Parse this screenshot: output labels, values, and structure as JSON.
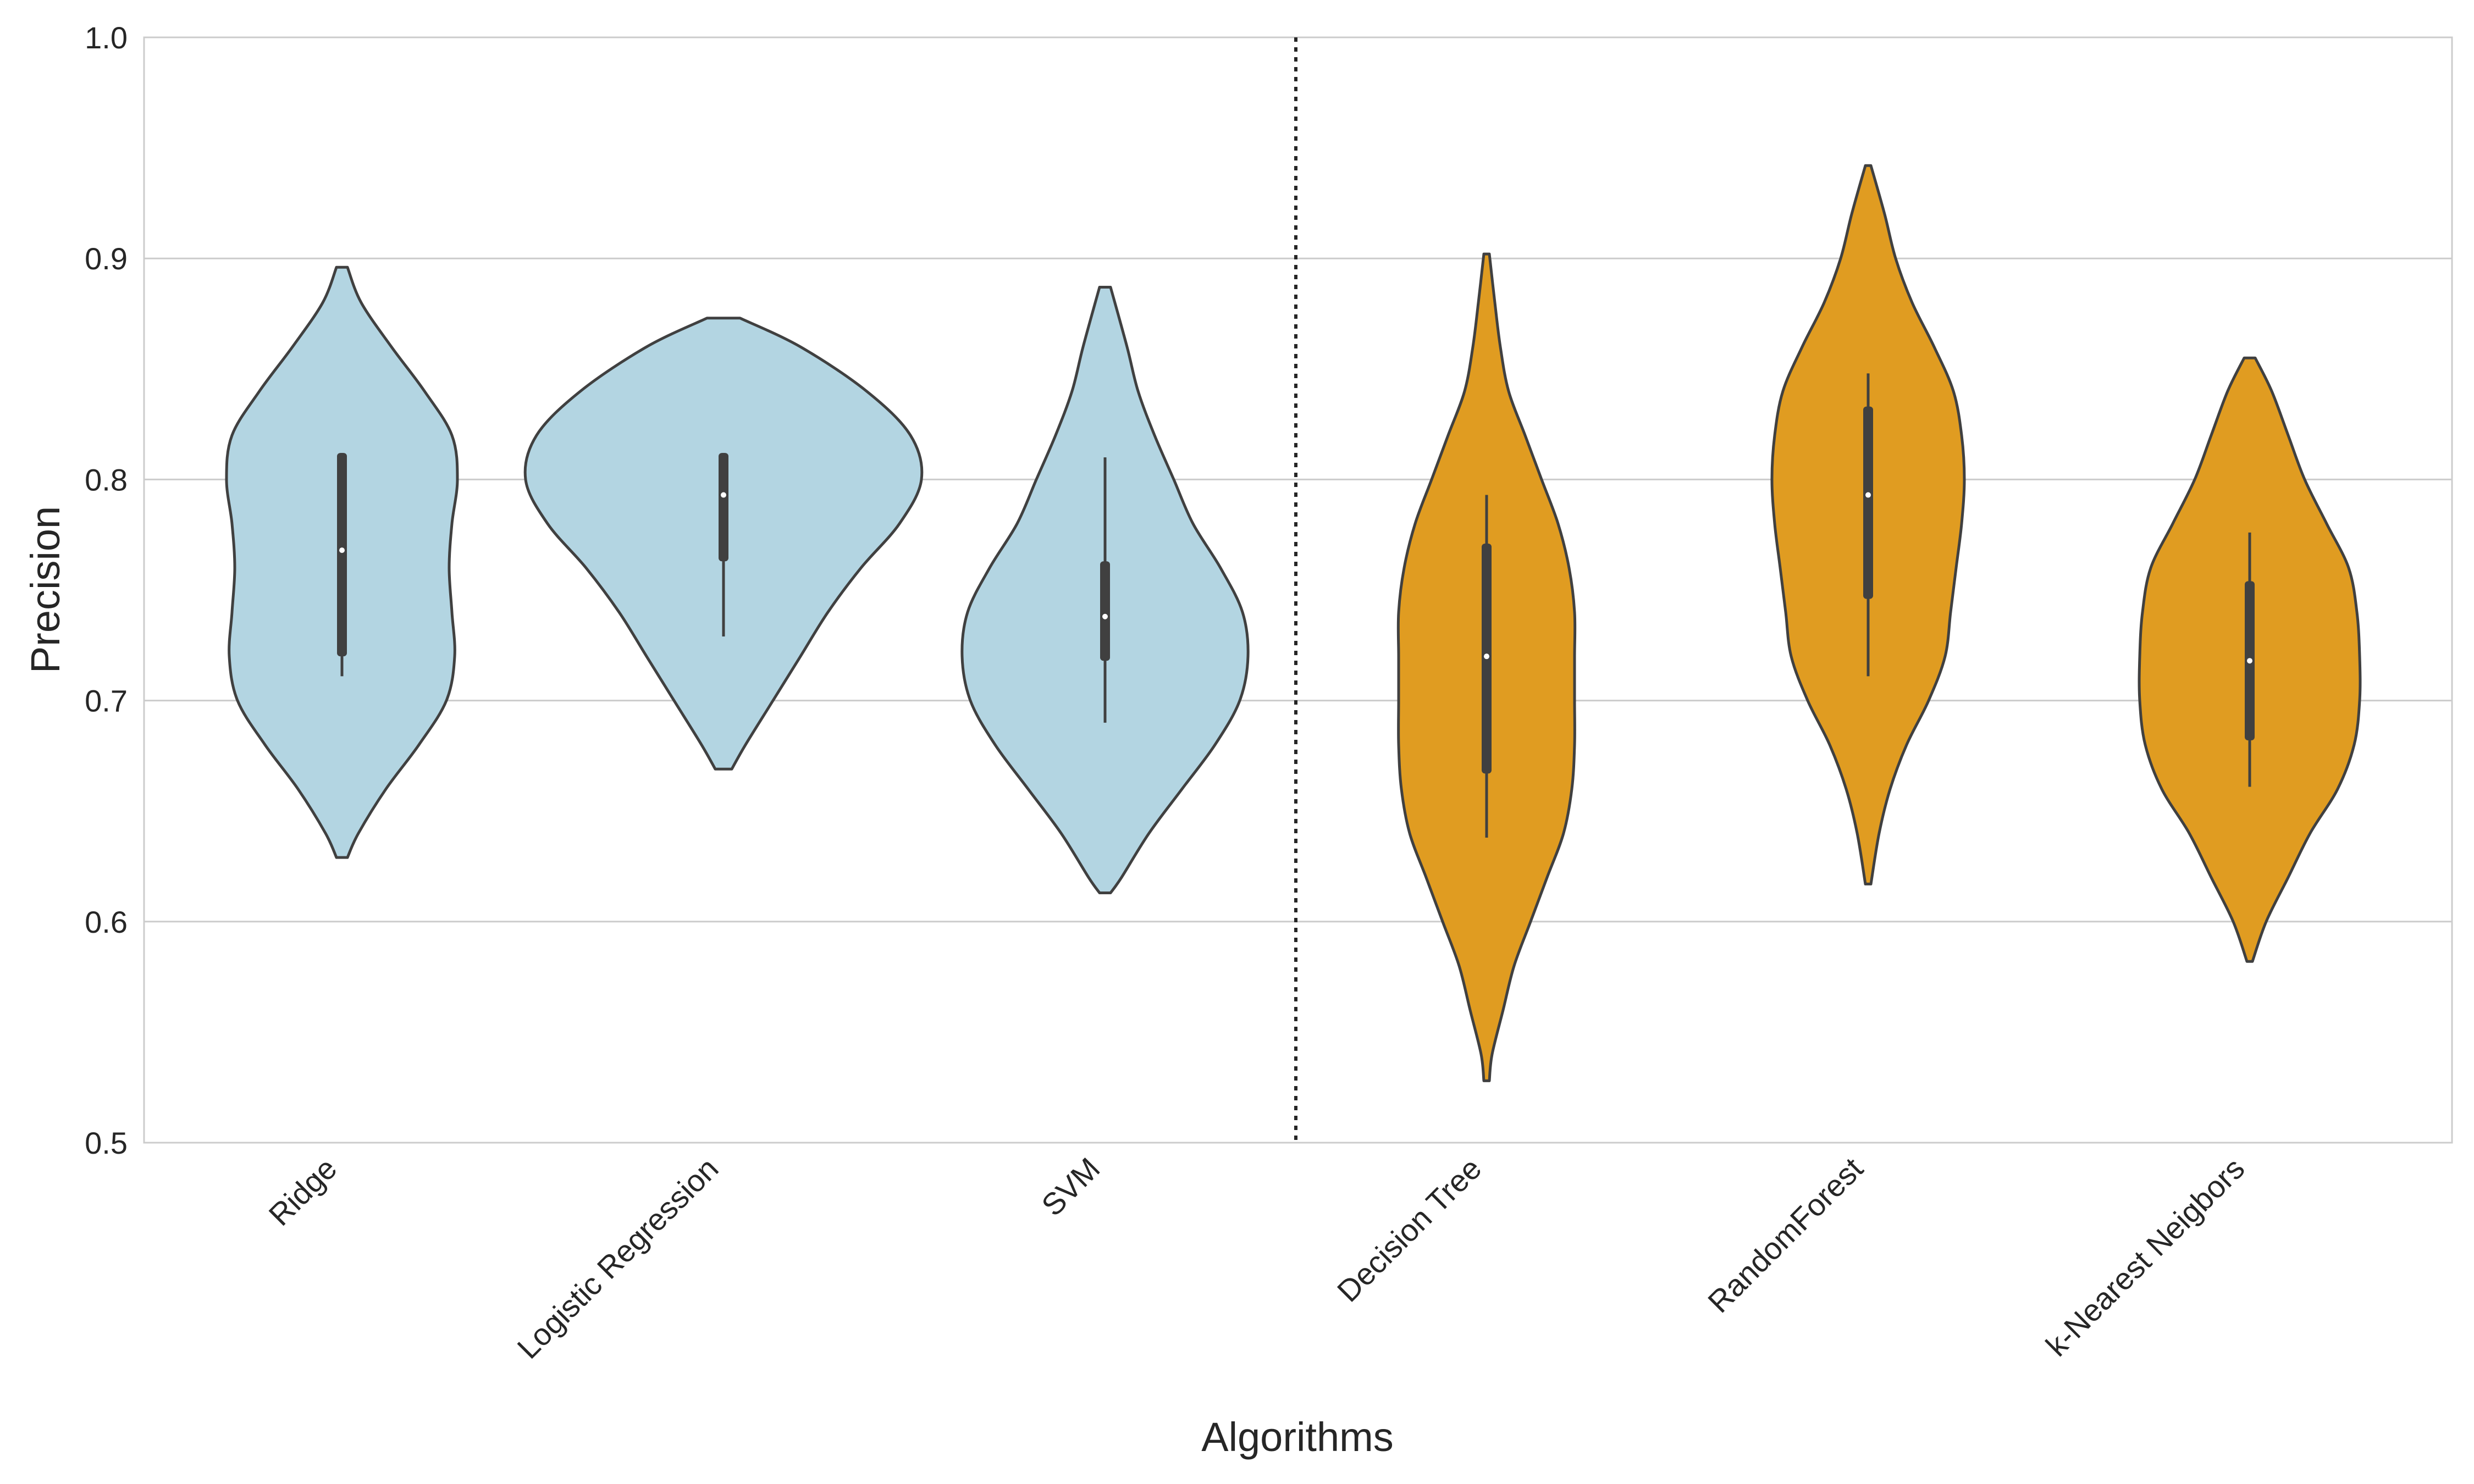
{
  "chart_data": {
    "type": "violin",
    "xlabel": "Algorithms",
    "ylabel": "Precision",
    "ylim": [
      0.5,
      1.0
    ],
    "yticks": [
      "0.5",
      "0.6",
      "0.7",
      "0.8",
      "0.9",
      "1.0"
    ],
    "grid": "horizontal",
    "divider_after_category": "SVM",
    "categories": [
      "Ridge",
      "Logistic Regression",
      "SVM",
      "Decision Tree",
      "RandomForest",
      "k-Nearest Neigbors"
    ],
    "colors": {
      "linear": "#b3d5e2",
      "nonlinear": "#e09c21",
      "outline": "#404040",
      "box": "#404040",
      "median": "#ffffff"
    },
    "violins": [
      {
        "group": "linear",
        "median": 0.768,
        "q1": 0.72,
        "q3": 0.812,
        "whisker_low": 0.711,
        "whisker_high": 0.812,
        "profile": [
          [
            0.629,
            0.01
          ],
          [
            0.64,
            0.03
          ],
          [
            0.66,
            0.08
          ],
          [
            0.68,
            0.14
          ],
          [
            0.7,
            0.19
          ],
          [
            0.72,
            0.205
          ],
          [
            0.74,
            0.2
          ],
          [
            0.76,
            0.195
          ],
          [
            0.78,
            0.2
          ],
          [
            0.8,
            0.21
          ],
          [
            0.82,
            0.2
          ],
          [
            0.84,
            0.15
          ],
          [
            0.86,
            0.09
          ],
          [
            0.88,
            0.035
          ],
          [
            0.896,
            0.01
          ]
        ]
      },
      {
        "group": "linear",
        "median": 0.793,
        "q1": 0.763,
        "q3": 0.812,
        "whisker_low": 0.729,
        "whisker_high": 0.812,
        "profile": [
          [
            0.669,
            0.015
          ],
          [
            0.68,
            0.04
          ],
          [
            0.7,
            0.09
          ],
          [
            0.72,
            0.14
          ],
          [
            0.74,
            0.19
          ],
          [
            0.76,
            0.25
          ],
          [
            0.78,
            0.32
          ],
          [
            0.8,
            0.36
          ],
          [
            0.82,
            0.34
          ],
          [
            0.84,
            0.26
          ],
          [
            0.86,
            0.14
          ],
          [
            0.873,
            0.03
          ]
        ]
      },
      {
        "group": "linear",
        "median": 0.738,
        "q1": 0.718,
        "q3": 0.763,
        "whisker_low": 0.69,
        "whisker_high": 0.81,
        "profile": [
          [
            0.613,
            0.01
          ],
          [
            0.62,
            0.03
          ],
          [
            0.64,
            0.08
          ],
          [
            0.66,
            0.14
          ],
          [
            0.68,
            0.2
          ],
          [
            0.7,
            0.245
          ],
          [
            0.72,
            0.26
          ],
          [
            0.74,
            0.25
          ],
          [
            0.76,
            0.21
          ],
          [
            0.78,
            0.16
          ],
          [
            0.8,
            0.125
          ],
          [
            0.82,
            0.09
          ],
          [
            0.84,
            0.06
          ],
          [
            0.86,
            0.04
          ],
          [
            0.887,
            0.01
          ]
        ]
      },
      {
        "group": "nonlinear",
        "median": 0.72,
        "q1": 0.667,
        "q3": 0.771,
        "whisker_low": 0.638,
        "whisker_high": 0.793,
        "profile": [
          [
            0.528,
            0.005
          ],
          [
            0.54,
            0.01
          ],
          [
            0.56,
            0.03
          ],
          [
            0.58,
            0.05
          ],
          [
            0.6,
            0.08
          ],
          [
            0.62,
            0.11
          ],
          [
            0.64,
            0.14
          ],
          [
            0.66,
            0.155
          ],
          [
            0.68,
            0.16
          ],
          [
            0.7,
            0.16
          ],
          [
            0.72,
            0.16
          ],
          [
            0.74,
            0.16
          ],
          [
            0.76,
            0.15
          ],
          [
            0.78,
            0.13
          ],
          [
            0.8,
            0.1
          ],
          [
            0.82,
            0.07
          ],
          [
            0.84,
            0.04
          ],
          [
            0.86,
            0.025
          ],
          [
            0.88,
            0.015
          ],
          [
            0.902,
            0.005
          ]
        ]
      },
      {
        "group": "nonlinear",
        "median": 0.793,
        "q1": 0.746,
        "q3": 0.833,
        "whisker_low": 0.711,
        "whisker_high": 0.848,
        "profile": [
          [
            0.617,
            0.005
          ],
          [
            0.64,
            0.02
          ],
          [
            0.66,
            0.04
          ],
          [
            0.68,
            0.07
          ],
          [
            0.7,
            0.11
          ],
          [
            0.72,
            0.14
          ],
          [
            0.74,
            0.15
          ],
          [
            0.76,
            0.16
          ],
          [
            0.78,
            0.17
          ],
          [
            0.8,
            0.175
          ],
          [
            0.82,
            0.17
          ],
          [
            0.84,
            0.155
          ],
          [
            0.86,
            0.12
          ],
          [
            0.88,
            0.08
          ],
          [
            0.9,
            0.05
          ],
          [
            0.92,
            0.03
          ],
          [
            0.942,
            0.005
          ]
        ]
      },
      {
        "group": "nonlinear",
        "median": 0.718,
        "q1": 0.682,
        "q3": 0.754,
        "whisker_low": 0.661,
        "whisker_high": 0.776,
        "profile": [
          [
            0.582,
            0.005
          ],
          [
            0.6,
            0.03
          ],
          [
            0.62,
            0.07
          ],
          [
            0.64,
            0.11
          ],
          [
            0.66,
            0.16
          ],
          [
            0.68,
            0.19
          ],
          [
            0.7,
            0.2
          ],
          [
            0.72,
            0.2
          ],
          [
            0.74,
            0.195
          ],
          [
            0.76,
            0.18
          ],
          [
            0.78,
            0.14
          ],
          [
            0.8,
            0.1
          ],
          [
            0.82,
            0.07
          ],
          [
            0.84,
            0.04
          ],
          [
            0.855,
            0.01
          ]
        ]
      }
    ]
  }
}
